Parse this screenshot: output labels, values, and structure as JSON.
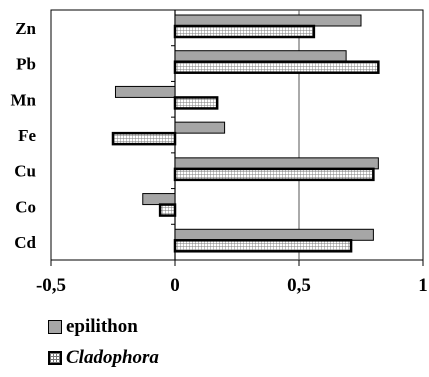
{
  "chart_data": {
    "type": "bar",
    "orientation": "horizontal",
    "categories": [
      "Zn",
      "Pb",
      "Mn",
      "Fe",
      "Cu",
      "Co",
      "Cd"
    ],
    "series": [
      {
        "name": "epilithon",
        "values": [
          0.75,
          0.69,
          -0.24,
          0.2,
          0.82,
          -0.13,
          0.8
        ],
        "color": "#a6a6a6"
      },
      {
        "name": "Cladophora",
        "values": [
          0.56,
          0.82,
          0.17,
          -0.25,
          0.8,
          -0.06,
          0.71
        ],
        "color": "#ffffff"
      }
    ],
    "xlim": [
      -0.5,
      1
    ],
    "xticks": [
      -0.5,
      0,
      0.5,
      1
    ],
    "xtick_labels": [
      "-0,5",
      "0",
      "0,5",
      "1"
    ],
    "grid": "vertical at 0.5",
    "legend": "bottom-left"
  }
}
